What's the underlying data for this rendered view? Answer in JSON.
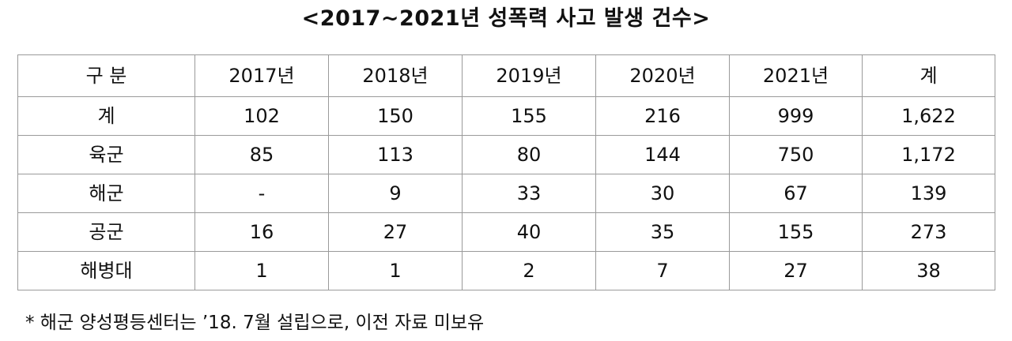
{
  "title": "<2017~2021년 성폭력 사고 발생 건수>",
  "table": {
    "headers": [
      "구 분",
      "2017년",
      "2018년",
      "2019년",
      "2020년",
      "2021년",
      "계"
    ],
    "rows": [
      [
        "계",
        "102",
        "150",
        "155",
        "216",
        "999",
        "1,622"
      ],
      [
        "육군",
        "85",
        "113",
        "80",
        "144",
        "750",
        "1,172"
      ],
      [
        "해군",
        "-",
        "9",
        "33",
        "30",
        "67",
        "139"
      ],
      [
        "공군",
        "16",
        "27",
        "40",
        "35",
        "155",
        "273"
      ],
      [
        "해병대",
        "1",
        "1",
        "2",
        "7",
        "27",
        "38"
      ]
    ]
  },
  "note": "* 해군 양성평등센터는 ’18. 7월 설립으로, 이전 자료 미보유"
}
